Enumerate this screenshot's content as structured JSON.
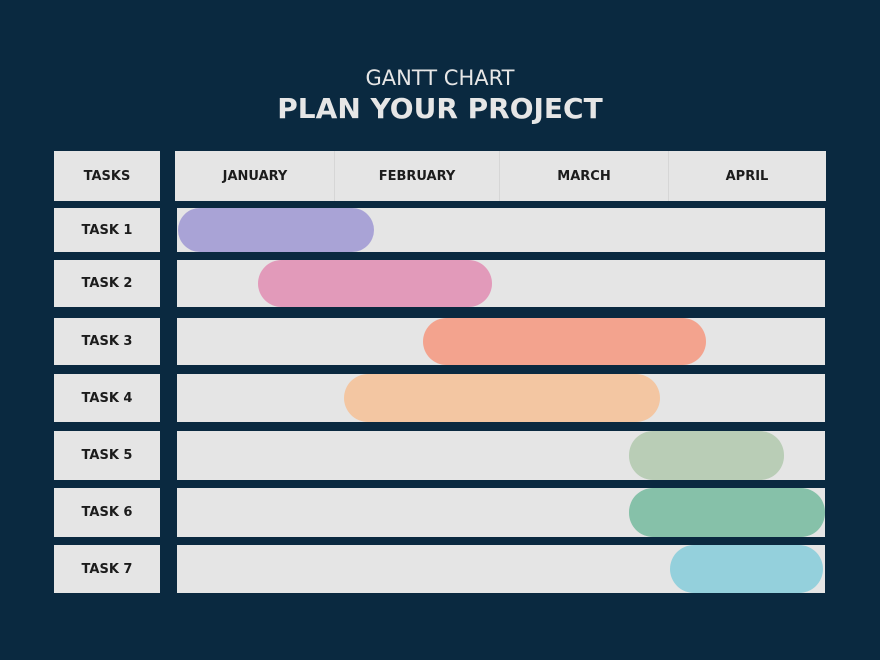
{
  "chart_data": {
    "type": "gantt",
    "subtitle": "GANTT CHART",
    "title": "PLAN YOUR PROJECT",
    "tasks_header": "TASKS",
    "months": [
      "JANUARY",
      "FEBRUARY",
      "MARCH",
      "APRIL"
    ],
    "tasks": [
      {
        "label": "TASK 1",
        "start": 0.01,
        "end": 1.24,
        "color": "#a9a3d6"
      },
      {
        "label": "TASK 2",
        "start": 0.52,
        "end": 1.96,
        "color": "#e29aba"
      },
      {
        "label": "TASK 3",
        "start": 1.54,
        "end": 3.24,
        "color": "#f3a38e"
      },
      {
        "label": "TASK 4",
        "start": 1.06,
        "end": 2.95,
        "color": "#f3c6a2"
      },
      {
        "label": "TASK 5",
        "start": 2.77,
        "end": 3.74,
        "color": "#b9cdb6"
      },
      {
        "label": "TASK 6",
        "start": 2.77,
        "end": 4.0,
        "color": "#86c1a9"
      },
      {
        "label": "TASK 7",
        "start": 3.01,
        "end": 3.99,
        "color": "#94d0dc"
      }
    ],
    "x_unit": "months elapsed from start of January",
    "background": "#0a2940"
  }
}
